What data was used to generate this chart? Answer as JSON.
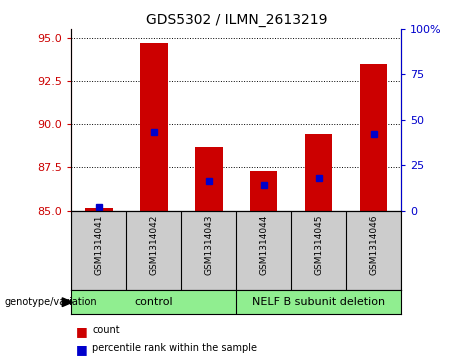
{
  "title": "GDS5302 / ILMN_2613219",
  "samples": [
    "GSM1314041",
    "GSM1314042",
    "GSM1314043",
    "GSM1314044",
    "GSM1314045",
    "GSM1314046"
  ],
  "count_values": [
    85.15,
    94.7,
    88.7,
    87.3,
    89.4,
    93.5
  ],
  "percentile_values": [
    2.0,
    43.0,
    16.0,
    14.0,
    18.0,
    42.0
  ],
  "y_min": 85,
  "y_max": 95.5,
  "y_ticks": [
    85,
    87.5,
    90,
    92.5,
    95
  ],
  "y2_ticks": [
    0,
    25,
    50,
    75,
    100
  ],
  "bar_color": "#cc0000",
  "dot_color": "#0000cc",
  "bar_width": 0.5,
  "xlabel_group": "genotype/variation",
  "legend_count": "count",
  "legend_percentile": "percentile rank within the sample",
  "bg_color": "#ffffff",
  "plot_bg": "#ffffff",
  "tick_area_color": "#cccccc",
  "group_bg": "#90ee90",
  "control_label": "control",
  "nelf_label": "NELF B subunit deletion"
}
